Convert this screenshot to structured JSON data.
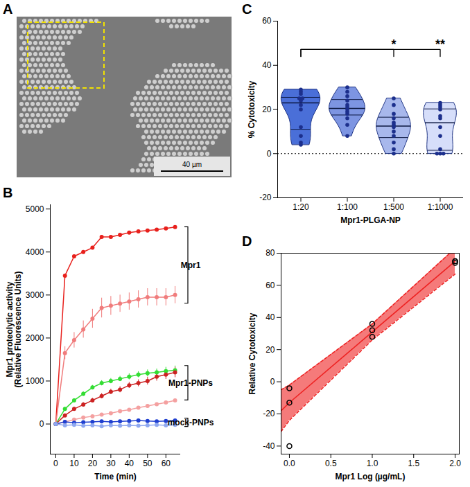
{
  "chart_data": [
    {
      "panel_label": "A",
      "type": "image",
      "annotations": [
        "40 µm"
      ]
    },
    {
      "panel_label": "B",
      "type": "line",
      "marker": "circle",
      "x_label": "Time (min)",
      "y_label": "Mpr1 proteolytic activity\n(Relative Fluorescence Units)",
      "x": [
        0,
        5,
        10,
        15,
        20,
        25,
        30,
        35,
        40,
        45,
        50,
        55,
        60,
        65
      ],
      "xlim": [
        -3,
        68
      ],
      "xticks": [
        0,
        10,
        20,
        30,
        40,
        50,
        60
      ],
      "ylim": [
        -700,
        5100
      ],
      "yticks": [
        0,
        1000,
        2000,
        3000,
        4000,
        5000
      ],
      "series": [
        {
          "name": "Mpr1",
          "color": "#e8201c",
          "values": [
            0,
            3450,
            3900,
            4000,
            4100,
            4350,
            4350,
            4400,
            4450,
            4480,
            4500,
            4520,
            4550,
            4580
          ]
        },
        {
          "name": "Mpr1",
          "color": "#f07c7c",
          "values": [
            0,
            1650,
            1950,
            2200,
            2450,
            2700,
            2750,
            2800,
            2850,
            2900,
            2950,
            2950,
            2950,
            3000
          ],
          "errors": [
            0,
            150,
            180,
            200,
            220,
            230,
            220,
            200,
            200,
            200,
            200,
            200,
            200,
            200
          ]
        },
        {
          "name": "Mpr1-PNPs",
          "color": "#33dd33",
          "values": [
            0,
            350,
            550,
            700,
            850,
            950,
            1000,
            1050,
            1100,
            1150,
            1180,
            1200,
            1230,
            1250
          ],
          "errors": [
            0,
            30,
            40,
            50,
            50,
            60,
            60,
            60,
            70,
            70,
            80,
            80,
            90,
            100
          ]
        },
        {
          "name": "Mpr1-PNPs",
          "color": "#cc2222",
          "values": [
            0,
            200,
            350,
            450,
            550,
            650,
            750,
            800,
            900,
            950,
            1000,
            1100,
            1150,
            1200
          ],
          "errors": [
            0,
            30,
            40,
            50,
            50,
            60,
            60,
            70,
            70,
            80,
            90,
            100,
            110,
            120
          ]
        },
        {
          "name": "Mpr1-PNPs",
          "color": "#f4a0a0",
          "values": [
            0,
            50,
            100,
            150,
            180,
            220,
            250,
            300,
            330,
            380,
            420,
            460,
            500,
            550
          ]
        },
        {
          "name": "mock-PNPs",
          "color": "#1f3fd0",
          "values": [
            0,
            50,
            30,
            40,
            50,
            60,
            50,
            60,
            70,
            80,
            70,
            60,
            70,
            80
          ]
        },
        {
          "name": "mock-PNPs",
          "color": "#8fa8f0",
          "values": [
            0,
            -30,
            -20,
            -40,
            -30,
            -50,
            -30,
            -40,
            -30,
            -40,
            -30,
            -20,
            -30,
            -20
          ]
        }
      ]
    },
    {
      "panel_label": "C",
      "type": "violin",
      "x_label": "Mpr1-PLGA-NP",
      "y_label": "% Cytotoxicity",
      "categories": [
        "1:20",
        "1:100",
        "1:500",
        "1:1000"
      ],
      "colors": [
        "#4a6fd8",
        "#7d95e2",
        "#a8b8ec",
        "#d6defa"
      ],
      "values": [
        [
          29,
          28,
          27,
          25,
          25,
          24,
          22,
          20,
          12,
          8,
          5,
          4
        ],
        [
          30,
          28,
          26,
          24,
          22,
          21,
          20,
          19,
          18,
          16,
          13,
          8
        ],
        [
          25,
          22,
          18,
          16,
          14,
          13,
          12,
          10,
          8,
          5,
          2,
          0
        ],
        [
          23,
          22,
          21,
          20,
          17,
          16,
          12,
          8,
          2,
          0,
          0,
          0
        ]
      ],
      "ylim": [
        -20,
        60
      ],
      "yticks": [
        -20,
        0,
        20,
        40,
        60
      ],
      "reference_line": 0,
      "annotations": [
        {
          "from": "1:20",
          "to": "1:500",
          "label": "*"
        },
        {
          "from": "1:20",
          "to": "1:1000",
          "label": "**"
        }
      ]
    },
    {
      "panel_label": "D",
      "type": "scatter",
      "marker": "open circle",
      "color": "#ee2222",
      "x_label": "Mpr1 Log (µg/mL)",
      "y_label": "Relative Cytotoxicity",
      "x": [
        0,
        0,
        0,
        1,
        1,
        1,
        2,
        2,
        2
      ],
      "y": [
        -4,
        -13,
        -40,
        36,
        32,
        28,
        75,
        74,
        75
      ],
      "fit": {
        "x": [
          -0.1,
          0,
          1,
          2
        ],
        "y": [
          -18,
          -13,
          31,
          75
        ],
        "lower": [
          -31,
          -24,
          26,
          67
        ],
        "upper": [
          -5,
          -2,
          36,
          83
        ]
      },
      "xlim": [
        -0.1,
        2.05
      ],
      "xticks": [
        {
          "value": 0,
          "label": "0.0"
        },
        {
          "value": 0.5,
          "label": "0.5"
        },
        {
          "value": 1,
          "label": "1.0"
        },
        {
          "value": 1.5,
          "label": "1.5"
        },
        {
          "value": 2,
          "label": "2.0"
        }
      ],
      "ylim": [
        -45,
        80
      ],
      "yticks": [
        -40,
        -20,
        0,
        20,
        40,
        60,
        80
      ]
    }
  ]
}
